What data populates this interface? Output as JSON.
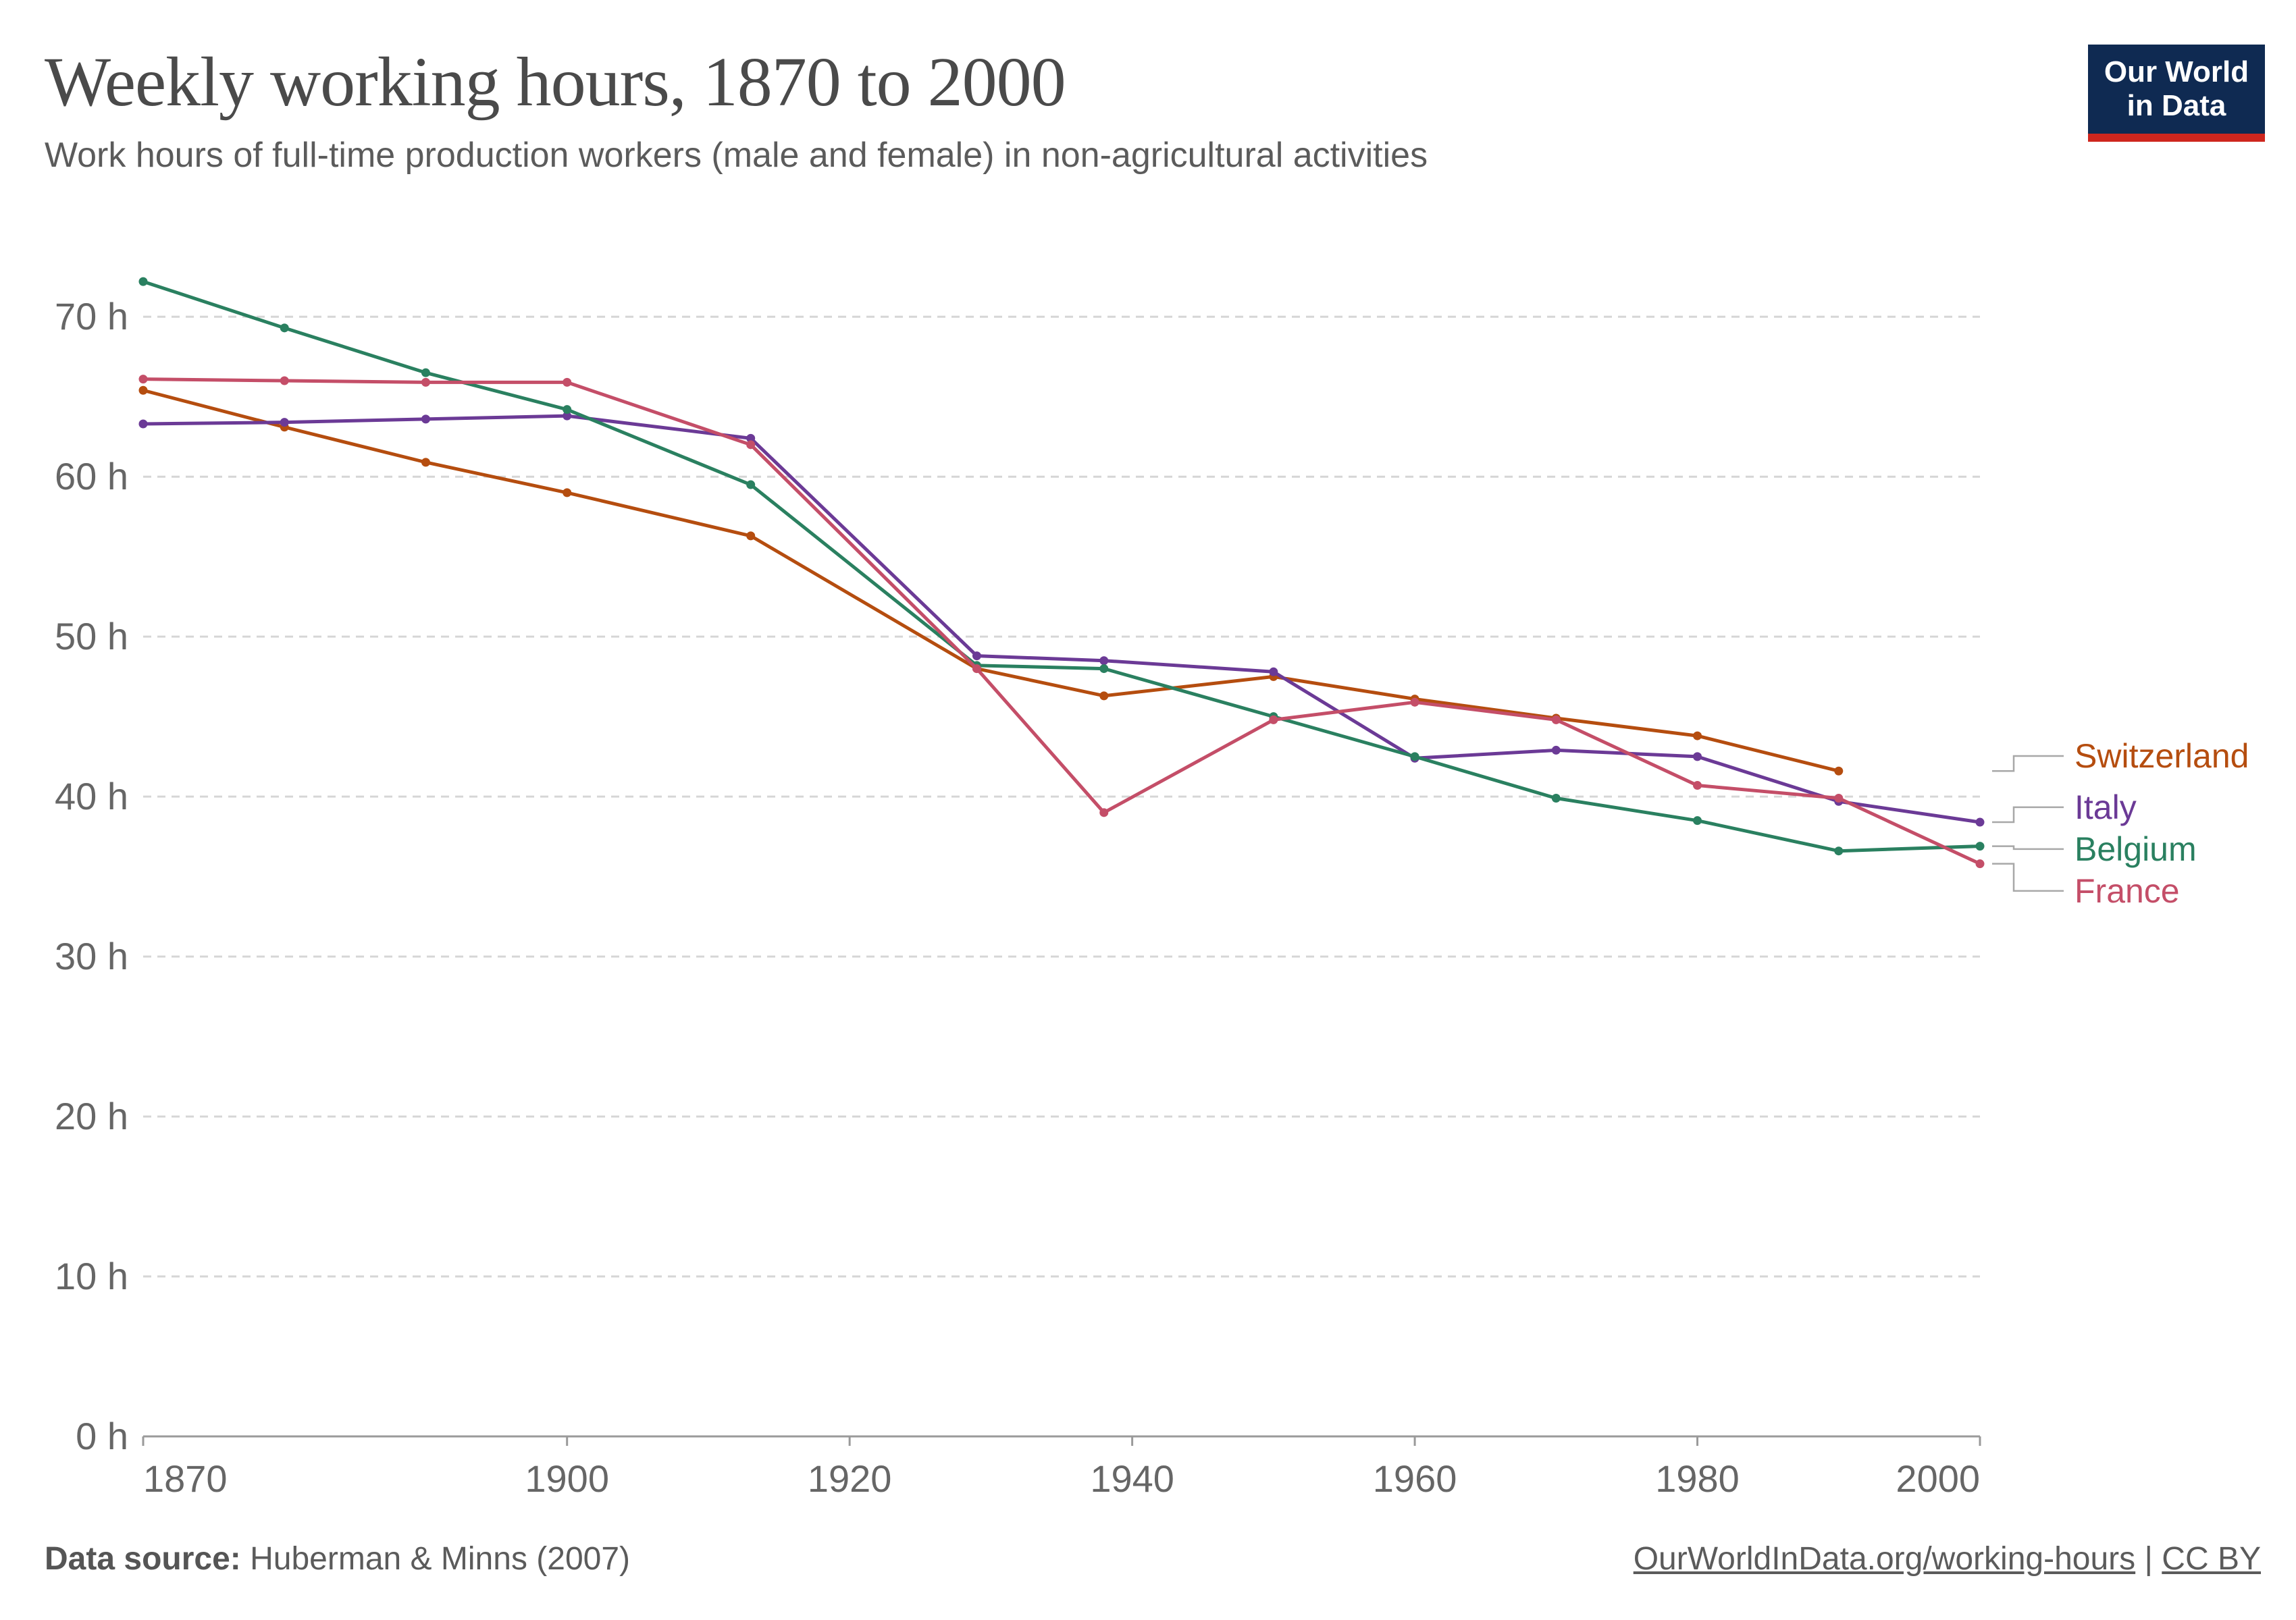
{
  "header": {
    "title": "Weekly working hours, 1870 to 2000",
    "subtitle": "Work hours of full-time production workers (male and female) in non-agricultural activities"
  },
  "logo": {
    "line1": "Our World",
    "line2": "in Data"
  },
  "footer": {
    "source_label": "Data source:",
    "source_text": "Huberman & Minns (2007)",
    "url_text": "OurWorldInData.org/working-hours",
    "separator": "|",
    "license_text": "CC BY"
  },
  "chart_data": {
    "type": "line",
    "title": "Weekly working hours, 1870 to 2000",
    "subtitle": "Work hours of full-time production workers (male and female) in non-agricultural activities",
    "xlabel": "",
    "ylabel": "",
    "xlim": [
      1870,
      2000
    ],
    "ylim": [
      0,
      70
    ],
    "x_ticks": [
      1870,
      1900,
      1920,
      1940,
      1960,
      1980,
      2000
    ],
    "y_ticks": [
      0,
      10,
      20,
      30,
      40,
      50,
      60,
      70
    ],
    "y_tick_suffix": " h",
    "grid": true,
    "legend_placement": "right (line-end labels)",
    "series": [
      {
        "name": "Switzerland",
        "color": "#b54d0f",
        "points": [
          [
            1870,
            65.4
          ],
          [
            1880,
            63.1
          ],
          [
            1890,
            60.9
          ],
          [
            1900,
            59.0
          ],
          [
            1913,
            56.3
          ],
          [
            1929,
            48.0
          ],
          [
            1938,
            46.3
          ],
          [
            1950,
            47.5
          ],
          [
            1960,
            46.1
          ],
          [
            1970,
            44.9
          ],
          [
            1980,
            43.8
          ],
          [
            1990,
            41.6
          ]
        ]
      },
      {
        "name": "Italy",
        "color": "#6b3a96",
        "points": [
          [
            1870,
            63.3
          ],
          [
            1880,
            63.4
          ],
          [
            1890,
            63.6
          ],
          [
            1900,
            63.8
          ],
          [
            1913,
            62.4
          ],
          [
            1929,
            48.8
          ],
          [
            1938,
            48.5
          ],
          [
            1950,
            47.8
          ],
          [
            1960,
            42.4
          ],
          [
            1970,
            42.9
          ],
          [
            1980,
            42.5
          ],
          [
            1990,
            39.7
          ],
          [
            2000,
            38.4
          ]
        ]
      },
      {
        "name": "Belgium",
        "color": "#2a8060",
        "points": [
          [
            1870,
            72.2
          ],
          [
            1880,
            69.3
          ],
          [
            1890,
            66.5
          ],
          [
            1900,
            64.2
          ],
          [
            1913,
            59.5
          ],
          [
            1929,
            48.2
          ],
          [
            1938,
            48.0
          ],
          [
            1950,
            45.0
          ],
          [
            1960,
            42.5
          ],
          [
            1970,
            39.9
          ],
          [
            1980,
            38.5
          ],
          [
            1990,
            36.6
          ],
          [
            2000,
            36.9
          ]
        ]
      },
      {
        "name": "France",
        "color": "#c44e68",
        "points": [
          [
            1870,
            66.1
          ],
          [
            1880,
            66.0
          ],
          [
            1890,
            65.9
          ],
          [
            1900,
            65.9
          ],
          [
            1913,
            62.0
          ],
          [
            1929,
            48.0
          ],
          [
            1938,
            39.0
          ],
          [
            1950,
            44.8
          ],
          [
            1960,
            45.9
          ],
          [
            1970,
            44.8
          ],
          [
            1980,
            40.7
          ],
          [
            1990,
            39.9
          ],
          [
            2000,
            35.8
          ]
        ]
      }
    ]
  }
}
